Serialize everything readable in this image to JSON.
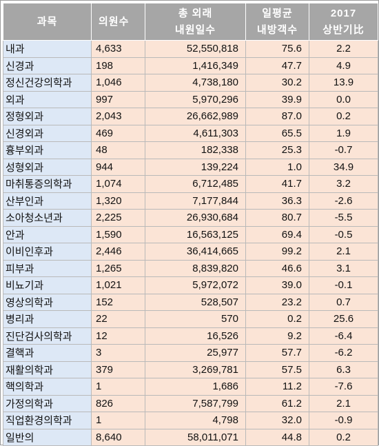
{
  "header": {
    "col1": "과목",
    "col2": "의원수",
    "col3_line1": "총 외래",
    "col3_line2": "내원일수",
    "col4_line1": "일평균",
    "col4_line2": "내방객수",
    "col5_line1": "2017",
    "col5_line2": "상반기比"
  },
  "rows": [
    {
      "subject": "내과",
      "clinics": "4,633",
      "visits": "52,550,818",
      "daily": "75.6",
      "change": "2.2"
    },
    {
      "subject": "신경과",
      "clinics": "198",
      "visits": "1,416,349",
      "daily": "47.7",
      "change": "4.9"
    },
    {
      "subject": "정신건강의학과",
      "clinics": "1,046",
      "visits": "4,738,180",
      "daily": "30.2",
      "change": "13.9"
    },
    {
      "subject": "외과",
      "clinics": "997",
      "visits": "5,970,296",
      "daily": "39.9",
      "change": "0.0"
    },
    {
      "subject": "정형외과",
      "clinics": "2,043",
      "visits": "26,662,989",
      "daily": "87.0",
      "change": "0.2"
    },
    {
      "subject": "신경외과",
      "clinics": "469",
      "visits": "4,611,303",
      "daily": "65.5",
      "change": "1.9"
    },
    {
      "subject": "흉부외과",
      "clinics": "48",
      "visits": "182,338",
      "daily": "25.3",
      "change": "-0.7"
    },
    {
      "subject": "성형외과",
      "clinics": "944",
      "visits": "139,224",
      "daily": "1.0",
      "change": "34.9"
    },
    {
      "subject": "마취통증의학과",
      "clinics": "1,074",
      "visits": "6,712,485",
      "daily": "41.7",
      "change": "3.2"
    },
    {
      "subject": "산부인과",
      "clinics": "1,320",
      "visits": "7,177,844",
      "daily": "36.3",
      "change": "-2.6"
    },
    {
      "subject": "소아청소년과",
      "clinics": "2,225",
      "visits": "26,930,684",
      "daily": "80.7",
      "change": "-5.5"
    },
    {
      "subject": "안과",
      "clinics": "1,590",
      "visits": "16,563,125",
      "daily": "69.4",
      "change": "-0.5"
    },
    {
      "subject": "이비인후과",
      "clinics": "2,446",
      "visits": "36,414,665",
      "daily": "99.2",
      "change": "2.1"
    },
    {
      "subject": "피부과",
      "clinics": "1,265",
      "visits": "8,839,820",
      "daily": "46.6",
      "change": "3.1"
    },
    {
      "subject": "비뇨기과",
      "clinics": "1,021",
      "visits": "5,972,072",
      "daily": "39.0",
      "change": "-0.1"
    },
    {
      "subject": "영상의학과",
      "clinics": "152",
      "visits": "528,507",
      "daily": "23.2",
      "change": "0.7"
    },
    {
      "subject": "병리과",
      "clinics": "22",
      "visits": "570",
      "daily": "0.2",
      "change": "25.6"
    },
    {
      "subject": "진단검사의학과",
      "clinics": "12",
      "visits": "16,526",
      "daily": "9.2",
      "change": "-6.4"
    },
    {
      "subject": "결핵과",
      "clinics": "3",
      "visits": "25,977",
      "daily": "57.7",
      "change": "-6.2"
    },
    {
      "subject": "재활의학과",
      "clinics": "379",
      "visits": "3,269,781",
      "daily": "57.5",
      "change": "6.3"
    },
    {
      "subject": "핵의학과",
      "clinics": "1",
      "visits": "1,686",
      "daily": "11.2",
      "change": "-7.6"
    },
    {
      "subject": "가정의학과",
      "clinics": "826",
      "visits": "7,587,799",
      "daily": "61.2",
      "change": "2.1"
    },
    {
      "subject": "직업환경의학과",
      "clinics": "1",
      "visits": "4,798",
      "daily": "32.0",
      "change": "-0.9"
    },
    {
      "subject": "일반의",
      "clinics": "8,640",
      "visits": "58,011,071",
      "daily": "44.8",
      "change": "0.2"
    }
  ]
}
